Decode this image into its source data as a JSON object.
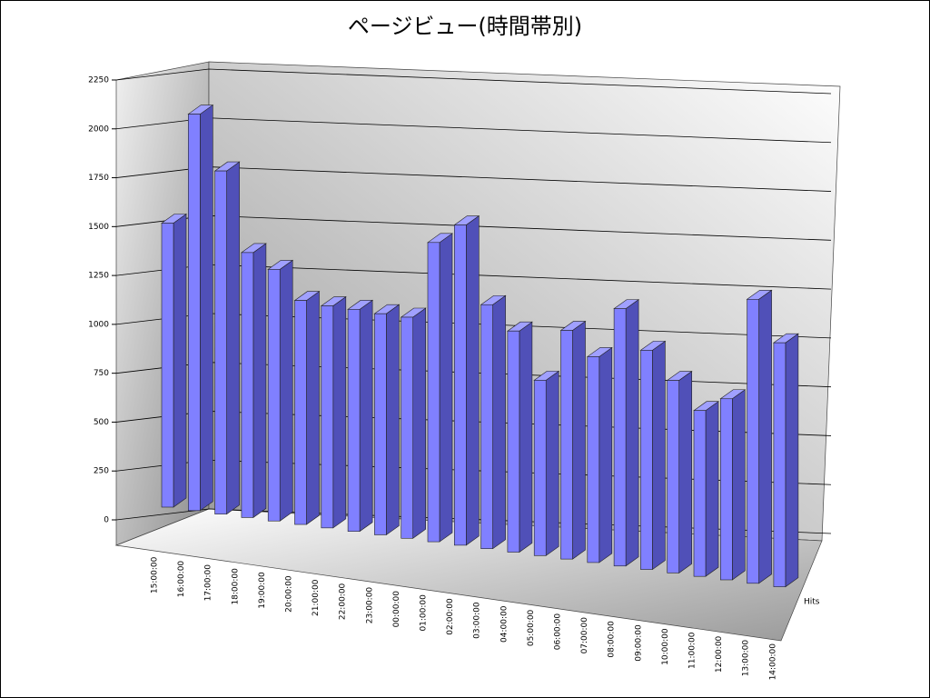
{
  "chart_data": {
    "type": "bar3d",
    "title": "ページビュー(時間帯別)",
    "categories": [
      "15:00:00",
      "16:00:00",
      "17:00:00",
      "18:00:00",
      "19:00:00",
      "20:00:00",
      "21:00:00",
      "22:00:00",
      "23:00:00",
      "00:00:00",
      "01:00:00",
      "02:00:00",
      "03:00:00",
      "04:00:00",
      "05:00:00",
      "06:00:00",
      "07:00:00",
      "08:00:00",
      "09:00:00",
      "10:00:00",
      "11:00:00",
      "12:00:00",
      "13:00:00",
      "14:00:00"
    ],
    "series": [
      {
        "name": "Hits",
        "color": "#8080ff",
        "values": [
          1490,
          2080,
          1800,
          1390,
          1320,
          1175,
          1165,
          1165,
          1160,
          1160,
          1570,
          1680,
          1280,
          1160,
          920,
          1200,
          1080,
          1350,
          1150,
          1010,
          870,
          950,
          1490,
          1280
        ]
      }
    ],
    "ylim": [
      0,
      2250
    ],
    "yticks": [
      0,
      250,
      500,
      750,
      1000,
      1250,
      1500,
      1750,
      2000,
      2250
    ],
    "grid": true
  }
}
